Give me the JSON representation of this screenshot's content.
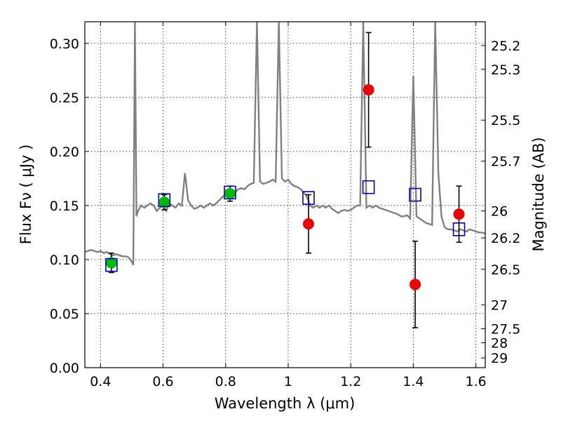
{
  "chart_data": {
    "type": "scatter",
    "xlabel": "Wavelength  λ (μm)",
    "ylabel": "Flux  Fν  ( μJy )",
    "ylabel_right": "Magnitude (AB)",
    "xlim": [
      0.35,
      1.63
    ],
    "ylim": [
      0.0,
      0.32
    ],
    "grid": true,
    "x_ticks": [
      0.4,
      0.6,
      0.8,
      1.0,
      1.2,
      1.4,
      1.6
    ],
    "x_tick_labels": [
      "0.4",
      "0.6",
      "0.8",
      "1",
      "1.2",
      "1.4",
      "1.6"
    ],
    "y_ticks": [
      0.0,
      0.05,
      0.1,
      0.15,
      0.2,
      0.25,
      0.3
    ],
    "y_tick_labels": [
      "0.00",
      "0.05",
      "0.10",
      "0.15",
      "0.20",
      "0.25",
      "0.30"
    ],
    "right_ticks": [
      {
        "label": "25.2",
        "flux": 0.298
      },
      {
        "label": "25.3",
        "flux": 0.276
      },
      {
        "label": "25.5",
        "flux": 0.229
      },
      {
        "label": "25.7",
        "flux": 0.191
      },
      {
        "label": "26",
        "flux": 0.145
      },
      {
        "label": "26.2",
        "flux": 0.12
      },
      {
        "label": "26.5",
        "flux": 0.091
      },
      {
        "label": "27",
        "flux": 0.058
      },
      {
        "label": "27.5",
        "flux": 0.036
      },
      {
        "label": "28",
        "flux": 0.023
      },
      {
        "label": "29",
        "flux": 0.009
      }
    ],
    "colors": {
      "spectrum": "#808080",
      "green_points": "#00bb00",
      "red_points": "#ee0000",
      "model_squares": "#0000cc",
      "errorbars": "#000000"
    },
    "series": [
      {
        "kind": "spectrum",
        "x": [
          0.35,
          0.36,
          0.37,
          0.38,
          0.39,
          0.4,
          0.41,
          0.42,
          0.43,
          0.44,
          0.45,
          0.46,
          0.47,
          0.48,
          0.49,
          0.5,
          0.505,
          0.51,
          0.515,
          0.52,
          0.53,
          0.54,
          0.55,
          0.56,
          0.57,
          0.58,
          0.59,
          0.6,
          0.61,
          0.62,
          0.63,
          0.64,
          0.65,
          0.66,
          0.67,
          0.68,
          0.69,
          0.7,
          0.71,
          0.72,
          0.73,
          0.74,
          0.75,
          0.76,
          0.77,
          0.78,
          0.79,
          0.8,
          0.81,
          0.82,
          0.83,
          0.84,
          0.85,
          0.86,
          0.87,
          0.88,
          0.89,
          0.9,
          0.91,
          0.92,
          0.93,
          0.94,
          0.95,
          0.96,
          0.97,
          0.98,
          0.99,
          1.0,
          1.01,
          1.02,
          1.03,
          1.04,
          1.05,
          1.06,
          1.07,
          1.08,
          1.09,
          1.1,
          1.11,
          1.12,
          1.13,
          1.14,
          1.15,
          1.16,
          1.17,
          1.18,
          1.19,
          1.2,
          1.21,
          1.22,
          1.23,
          1.24,
          1.25,
          1.26,
          1.27,
          1.28,
          1.29,
          1.3,
          1.31,
          1.32,
          1.33,
          1.34,
          1.35,
          1.36,
          1.37,
          1.38,
          1.39,
          1.4,
          1.41,
          1.42,
          1.43,
          1.44,
          1.45,
          1.46,
          1.47,
          1.48,
          1.49,
          1.5,
          1.51,
          1.52,
          1.53,
          1.54,
          1.55,
          1.56,
          1.57,
          1.58,
          1.59,
          1.6,
          1.61,
          1.62,
          1.63
        ],
        "y": [
          0.107,
          0.108,
          0.109,
          0.108,
          0.107,
          0.108,
          0.106,
          0.107,
          0.105,
          0.104,
          0.105,
          0.104,
          0.103,
          0.103,
          0.102,
          0.098,
          0.095,
          0.32,
          0.14,
          0.145,
          0.15,
          0.148,
          0.15,
          0.152,
          0.15,
          0.145,
          0.148,
          0.15,
          0.145,
          0.152,
          0.15,
          0.148,
          0.152,
          0.15,
          0.18,
          0.155,
          0.15,
          0.147,
          0.148,
          0.15,
          0.148,
          0.15,
          0.152,
          0.15,
          0.152,
          0.155,
          0.158,
          0.16,
          0.16,
          0.158,
          0.162,
          0.165,
          0.166,
          0.165,
          0.168,
          0.17,
          0.171,
          0.32,
          0.172,
          0.17,
          0.171,
          0.172,
          0.174,
          0.172,
          0.32,
          0.175,
          0.172,
          0.174,
          0.17,
          0.168,
          0.167,
          0.165,
          0.162,
          0.158,
          0.15,
          0.148,
          0.15,
          0.148,
          0.15,
          0.148,
          0.15,
          0.147,
          0.145,
          0.143,
          0.145,
          0.146,
          0.145,
          0.146,
          0.148,
          0.15,
          0.15,
          0.32,
          0.148,
          0.15,
          0.148,
          0.15,
          0.148,
          0.147,
          0.146,
          0.145,
          0.144,
          0.143,
          0.142,
          0.14,
          0.14,
          0.141,
          0.138,
          0.27,
          0.14,
          0.138,
          0.136,
          0.134,
          0.133,
          0.132,
          0.32,
          0.18,
          0.14,
          0.13,
          0.128,
          0.128,
          0.127,
          0.126,
          0.128,
          0.127,
          0.126,
          0.128,
          0.127,
          0.126,
          0.125,
          0.125,
          0.124
        ]
      },
      {
        "kind": "points",
        "name": "green",
        "x": [
          0.435,
          0.604,
          0.814
        ],
        "y": [
          0.097,
          0.153,
          0.161
        ],
        "yerr": [
          0.009,
          0.007,
          0.007
        ]
      },
      {
        "kind": "points",
        "name": "red",
        "x": [
          1.065,
          1.257,
          1.406,
          1.546
        ],
        "y": [
          0.133,
          0.257,
          0.077,
          0.142
        ],
        "yerr": [
          0.027,
          0.053,
          0.04,
          0.026
        ]
      },
      {
        "kind": "squares",
        "name": "model",
        "x": [
          0.435,
          0.604,
          0.814,
          1.065,
          1.257,
          1.406,
          1.546
        ],
        "y": [
          0.095,
          0.155,
          0.162,
          0.157,
          0.167,
          0.16,
          0.128
        ]
      }
    ]
  }
}
